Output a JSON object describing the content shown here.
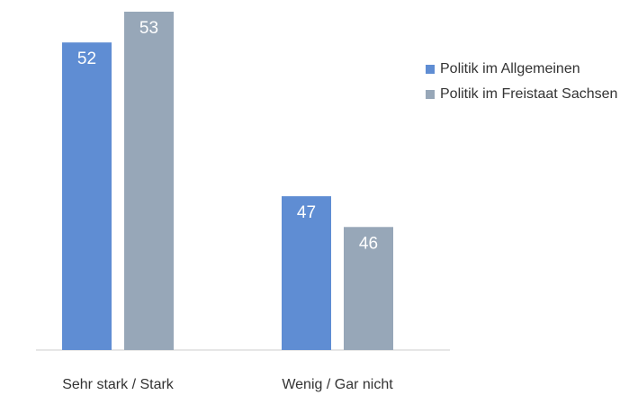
{
  "chart_data": {
    "type": "bar",
    "categories": [
      "Sehr stark / Stark",
      "Wenig / Gar nicht"
    ],
    "series": [
      {
        "name": "Politik im Allgemeinen",
        "color": "#5f8dd3",
        "values": [
          52,
          47
        ]
      },
      {
        "name": "Politik im Freistaat Sachsen",
        "color": "#97a7b8",
        "values": [
          53,
          46
        ]
      }
    ],
    "ylim": [
      42,
      53
    ],
    "legend": "right"
  }
}
